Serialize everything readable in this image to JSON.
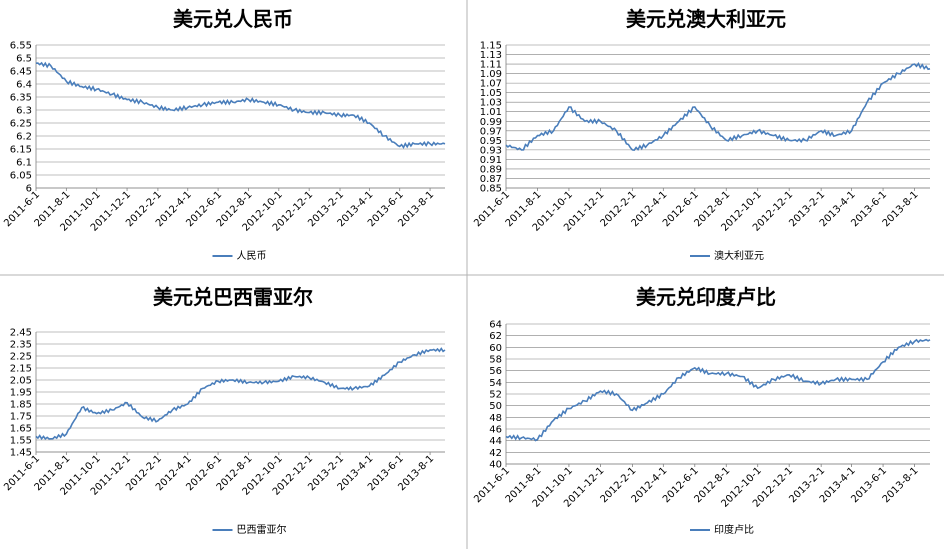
{
  "colors": {
    "series": "#4a7ebb",
    "grid": "#808080",
    "border": "#b3b3b3"
  },
  "chart_data": [
    {
      "type": "line",
      "title": "美元兑人民币",
      "legend": {
        "position": "bottom",
        "entries": [
          "人民币"
        ]
      },
      "grid": true,
      "ylim": [
        6,
        6.55
      ],
      "yticks": [
        "6.55",
        "6.5",
        "6.45",
        "6.4",
        "6.35",
        "6.3",
        "6.25",
        "6.2",
        "6.15",
        "6.1",
        "6.05",
        "6"
      ],
      "xlim": [
        "2011-6-1",
        "2013-8-31"
      ],
      "xticks": [
        "2011-6-1",
        "2011-8-1",
        "2011-10-1",
        "2011-12-1",
        "2012-2-1",
        "2012-4-1",
        "2012-6-1",
        "2012-8-1",
        "2012-10-1",
        "2012-12-1",
        "2013-2-1",
        "2013-4-1",
        "2013-6-1",
        "2013-8-1"
      ],
      "series": [
        {
          "name": "人民币",
          "x": [
            "2011-6-1",
            "2011-7-1",
            "2011-8-1",
            "2011-9-1",
            "2011-10-1",
            "2011-11-1",
            "2011-12-1",
            "2012-1-1",
            "2012-2-1",
            "2012-3-1",
            "2012-4-1",
            "2012-5-1",
            "2012-6-1",
            "2012-7-1",
            "2012-8-1",
            "2012-9-1",
            "2012-10-1",
            "2012-11-1",
            "2012-12-1",
            "2013-1-1",
            "2013-2-1",
            "2013-3-1",
            "2013-4-1",
            "2013-5-1",
            "2013-6-1",
            "2013-7-1",
            "2013-8-1",
            "2013-8-31"
          ],
          "y": [
            6.48,
            6.47,
            6.41,
            6.39,
            6.38,
            6.36,
            6.34,
            6.33,
            6.31,
            6.3,
            6.31,
            6.32,
            6.33,
            6.33,
            6.34,
            6.33,
            6.32,
            6.3,
            6.29,
            6.29,
            6.28,
            6.28,
            6.25,
            6.2,
            6.16,
            6.17,
            6.17,
            6.17
          ]
        }
      ]
    },
    {
      "type": "line",
      "title": "美元兑澳大利亚元",
      "legend": {
        "position": "bottom",
        "entries": [
          "澳大利亚元"
        ]
      },
      "grid": true,
      "ylim": [
        0.85,
        1.15
      ],
      "yticks": [
        "1.15",
        "1.13",
        "1.11",
        "1.09",
        "1.07",
        "1.05",
        "1.03",
        "1.01",
        "0.99",
        "0.97",
        "0.95",
        "0.93",
        "0.91",
        "0.89",
        "0.87",
        "0.85"
      ],
      "xlim": [
        "2011-6-1",
        "2013-8-31"
      ],
      "xticks": [
        "2011-6-1",
        "2011-8-1",
        "2011-10-1",
        "2011-12-1",
        "2012-2-1",
        "2012-4-1",
        "2012-6-1",
        "2012-8-1",
        "2012-10-1",
        "2012-12-1",
        "2013-2-1",
        "2013-4-1",
        "2013-6-1",
        "2013-8-1"
      ],
      "series": [
        {
          "name": "澳大利亚元",
          "x": [
            "2011-6-1",
            "2011-7-1",
            "2011-8-1",
            "2011-9-1",
            "2011-10-1",
            "2011-11-1",
            "2011-12-1",
            "2012-1-1",
            "2012-2-1",
            "2012-3-1",
            "2012-4-1",
            "2012-5-1",
            "2012-6-1",
            "2012-7-1",
            "2012-8-1",
            "2012-9-1",
            "2012-10-1",
            "2012-11-1",
            "2012-12-1",
            "2013-1-1",
            "2013-2-1",
            "2013-3-1",
            "2013-4-1",
            "2013-5-1",
            "2013-6-1",
            "2013-7-1",
            "2013-8-1",
            "2013-8-31"
          ],
          "y": [
            0.94,
            0.93,
            0.96,
            0.97,
            1.02,
            0.99,
            0.99,
            0.97,
            0.93,
            0.94,
            0.96,
            0.99,
            1.02,
            0.98,
            0.95,
            0.96,
            0.97,
            0.96,
            0.95,
            0.95,
            0.97,
            0.96,
            0.97,
            1.03,
            1.07,
            1.09,
            1.11,
            1.1
          ]
        }
      ]
    },
    {
      "type": "line",
      "title": "美元兑巴西雷亚尔",
      "legend": {
        "position": "bottom",
        "entries": [
          "巴西雷亚尔"
        ]
      },
      "grid": true,
      "ylim": [
        1.45,
        2.45
      ],
      "yticks": [
        "2.45",
        "2.35",
        "2.25",
        "2.15",
        "2.05",
        "1.95",
        "1.85",
        "1.75",
        "1.65",
        "1.55",
        "1.45"
      ],
      "xlim": [
        "2011-6-1",
        "2013-8-31"
      ],
      "xticks": [
        "2011-6-1",
        "2011-8-1",
        "2011-10-1",
        "2011-12-1",
        "2012-2-1",
        "2012-4-1",
        "2012-6-1",
        "2012-8-1",
        "2012-10-1",
        "2012-12-1",
        "2013-2-1",
        "2013-4-1",
        "2013-6-1",
        "2013-8-1"
      ],
      "series": [
        {
          "name": "巴西雷亚尔",
          "x": [
            "2011-6-1",
            "2011-7-1",
            "2011-8-1",
            "2011-9-1",
            "2011-10-1",
            "2011-11-1",
            "2011-12-1",
            "2012-1-1",
            "2012-2-1",
            "2012-3-1",
            "2012-4-1",
            "2012-5-1",
            "2012-6-1",
            "2012-7-1",
            "2012-8-1",
            "2012-9-1",
            "2012-10-1",
            "2012-11-1",
            "2012-12-1",
            "2013-1-1",
            "2013-2-1",
            "2013-3-1",
            "2013-4-1",
            "2013-5-1",
            "2013-6-1",
            "2013-7-1",
            "2013-8-1",
            "2013-8-31"
          ],
          "y": [
            1.58,
            1.56,
            1.6,
            1.82,
            1.77,
            1.8,
            1.86,
            1.74,
            1.71,
            1.8,
            1.85,
            1.98,
            2.04,
            2.05,
            2.03,
            2.03,
            2.04,
            2.08,
            2.07,
            2.03,
            1.98,
            1.98,
            2.0,
            2.09,
            2.2,
            2.26,
            2.3,
            2.3
          ]
        }
      ]
    },
    {
      "type": "line",
      "title": "美元兑印度卢比",
      "legend": {
        "position": "bottom",
        "entries": [
          "印度卢比"
        ]
      },
      "grid": true,
      "ylim": [
        40,
        64
      ],
      "yticks": [
        "64",
        "62",
        "60",
        "58",
        "56",
        "54",
        "52",
        "50",
        "48",
        "46",
        "44",
        "42",
        "40"
      ],
      "xlim": [
        "2011-6-1",
        "2013-8-31"
      ],
      "xticks": [
        "2011-6-1",
        "2011-8-1",
        "2011-10-1",
        "2011-12-1",
        "2012-2-1",
        "2012-4-1",
        "2012-6-1",
        "2012-8-1",
        "2012-10-1",
        "2012-12-1",
        "2013-2-1",
        "2013-4-1",
        "2013-6-1",
        "2013-8-1"
      ],
      "series": [
        {
          "name": "印度卢比",
          "x": [
            "2011-6-1",
            "2011-7-1",
            "2011-8-1",
            "2011-9-1",
            "2011-10-1",
            "2011-11-1",
            "2011-12-1",
            "2012-1-1",
            "2012-2-1",
            "2012-3-1",
            "2012-4-1",
            "2012-5-1",
            "2012-6-1",
            "2012-7-1",
            "2012-8-1",
            "2012-9-1",
            "2012-10-1",
            "2012-11-1",
            "2012-12-1",
            "2013-1-1",
            "2013-2-1",
            "2013-3-1",
            "2013-4-1",
            "2013-5-1",
            "2013-6-1",
            "2013-7-1",
            "2013-8-1",
            "2013-8-31"
          ],
          "y": [
            44.7,
            44.5,
            44.2,
            47.5,
            49.5,
            50.8,
            52.5,
            52.0,
            49.2,
            50.5,
            52.0,
            54.8,
            56.5,
            55.5,
            55.5,
            55.0,
            53.0,
            54.5,
            55.3,
            54.2,
            53.8,
            54.5,
            54.5,
            54.5,
            57.5,
            60.0,
            61.0,
            61.3
          ]
        }
      ]
    }
  ]
}
